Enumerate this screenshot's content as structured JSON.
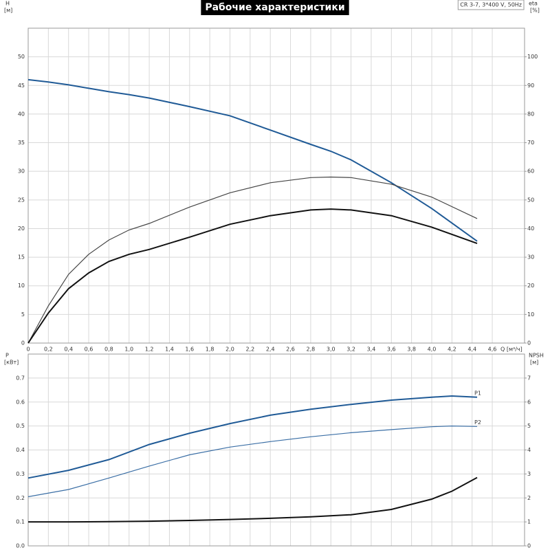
{
  "chart_data": [
    {
      "type": "line",
      "title": "Рабочие характеристики",
      "annotation": "CR 3-7, 3*400 V, 50Hz",
      "ylabel": "H",
      "ylabel_unit": "[м]",
      "y2label": "eta",
      "y2label_unit": "[%]",
      "xlabel": "Q [м³/ч]",
      "grid": true,
      "xlim": [
        0,
        4.92
      ],
      "ylim": [
        0,
        55
      ],
      "y2lim": [
        0,
        110
      ],
      "xticks": [
        0,
        {
          "value": 0.2,
          "label": "0,2"
        },
        {
          "value": 0.4,
          "label": "0,4"
        },
        {
          "value": 0.6,
          "label": "0,6"
        },
        {
          "value": 0.8,
          "label": "0,8"
        },
        {
          "value": 1.0,
          "label": "1,0"
        },
        {
          "value": 1.2,
          "label": "1,2"
        },
        {
          "value": 1.4,
          "label": "1,4"
        },
        {
          "value": 1.6,
          "label": "1,6"
        },
        {
          "value": 1.8,
          "label": "1,8"
        },
        {
          "value": 2.0,
          "label": "2,0"
        },
        {
          "value": 2.2,
          "label": "2,2"
        },
        {
          "value": 2.4,
          "label": "2,4"
        },
        {
          "value": 2.6,
          "label": "2,6"
        },
        {
          "value": 2.8,
          "label": "2,8"
        },
        {
          "value": 3.0,
          "label": "3,0"
        },
        {
          "value": 3.2,
          "label": "3,2"
        },
        {
          "value": 3.4,
          "label": "3,4"
        },
        {
          "value": 3.6,
          "label": "3,6"
        },
        {
          "value": 3.8,
          "label": "3,8"
        },
        {
          "value": 4.0,
          "label": "4,0"
        },
        {
          "value": 4.2,
          "label": "4,2"
        },
        {
          "value": 4.4,
          "label": "4,4"
        },
        {
          "value": 4.6,
          "label": "4,6"
        }
      ],
      "yticks": [
        0,
        5,
        10,
        15,
        20,
        25,
        30,
        35,
        40,
        45,
        50
      ],
      "y2ticks": [
        0,
        10,
        20,
        30,
        40,
        50,
        60,
        70,
        80,
        90,
        100
      ],
      "x": [
        0,
        0.2,
        0.4,
        0.6,
        0.8,
        1.0,
        1.2,
        1.6,
        2.0,
        2.4,
        2.8,
        3.0,
        3.2,
        3.6,
        4.0,
        4.45
      ],
      "series": [
        {
          "color": "#1f5a96",
          "width": 2,
          "values": [
            46,
            45.6,
            45.1,
            44.5,
            43.9,
            43.4,
            42.8,
            41.3,
            39.7,
            37.2,
            34.7,
            33.5,
            32,
            28,
            23.5,
            17.8
          ]
        },
        {
          "color": "#444444",
          "width": 1.2,
          "axis": "y2",
          "values": [
            0,
            13,
            24,
            31,
            36,
            39.5,
            41.8,
            47.5,
            52.5,
            56,
            57.8,
            58,
            57.8,
            55.5,
            51,
            43.5
          ]
        },
        {
          "color": "#111111",
          "width": 2,
          "axis": "y2",
          "values": [
            0,
            10.5,
            19,
            24.5,
            28.5,
            31,
            32.7,
            37,
            41.5,
            44.5,
            46.5,
            46.8,
            46.5,
            44.5,
            40.5,
            34.8
          ]
        }
      ]
    },
    {
      "type": "line",
      "ylabel": "P",
      "ylabel_unit": "[кВт]",
      "y2label": "NPSH",
      "y2label_unit": "[м]",
      "grid": true,
      "xlim": [
        0,
        4.92
      ],
      "ylim": [
        0,
        0.8
      ],
      "y2lim": [
        0,
        8
      ],
      "xticks": [
        0,
        0.2,
        0.4,
        0.6,
        0.8,
        1.0,
        1.2,
        1.4,
        1.6,
        1.8,
        2.0,
        2.2,
        2.4,
        2.6,
        2.8,
        3.0,
        3.2,
        3.4,
        3.6,
        3.8,
        4.0,
        4.2,
        4.4,
        4.6
      ],
      "yticks": [
        {
          "value": 0,
          "label": "0.0"
        },
        0.1,
        0.2,
        0.3,
        0.4,
        0.5,
        0.6,
        0.7
      ],
      "y2ticks": [
        0,
        1,
        2,
        3,
        4,
        5,
        6,
        7
      ],
      "x": [
        0,
        0.4,
        0.8,
        1.2,
        1.6,
        2.0,
        2.4,
        2.8,
        3.2,
        3.6,
        4.0,
        4.2,
        4.45
      ],
      "series": [
        {
          "name": "P1",
          "color": "#1f5a96",
          "width": 2,
          "values": [
            0.283,
            0.315,
            0.36,
            0.423,
            0.47,
            0.51,
            0.545,
            0.57,
            0.59,
            0.608,
            0.62,
            0.625,
            0.62
          ]
        },
        {
          "name": "P2",
          "color": "#3a6ea5",
          "width": 1.2,
          "values": [
            0.205,
            0.235,
            0.283,
            0.333,
            0.38,
            0.412,
            0.435,
            0.455,
            0.472,
            0.485,
            0.497,
            0.5,
            0.498
          ]
        },
        {
          "color": "#111111",
          "width": 2,
          "axis": "y2",
          "values": [
            1.0,
            1.0,
            1.01,
            1.03,
            1.06,
            1.1,
            1.15,
            1.21,
            1.3,
            1.52,
            1.95,
            2.28,
            2.85
          ]
        }
      ]
    }
  ]
}
